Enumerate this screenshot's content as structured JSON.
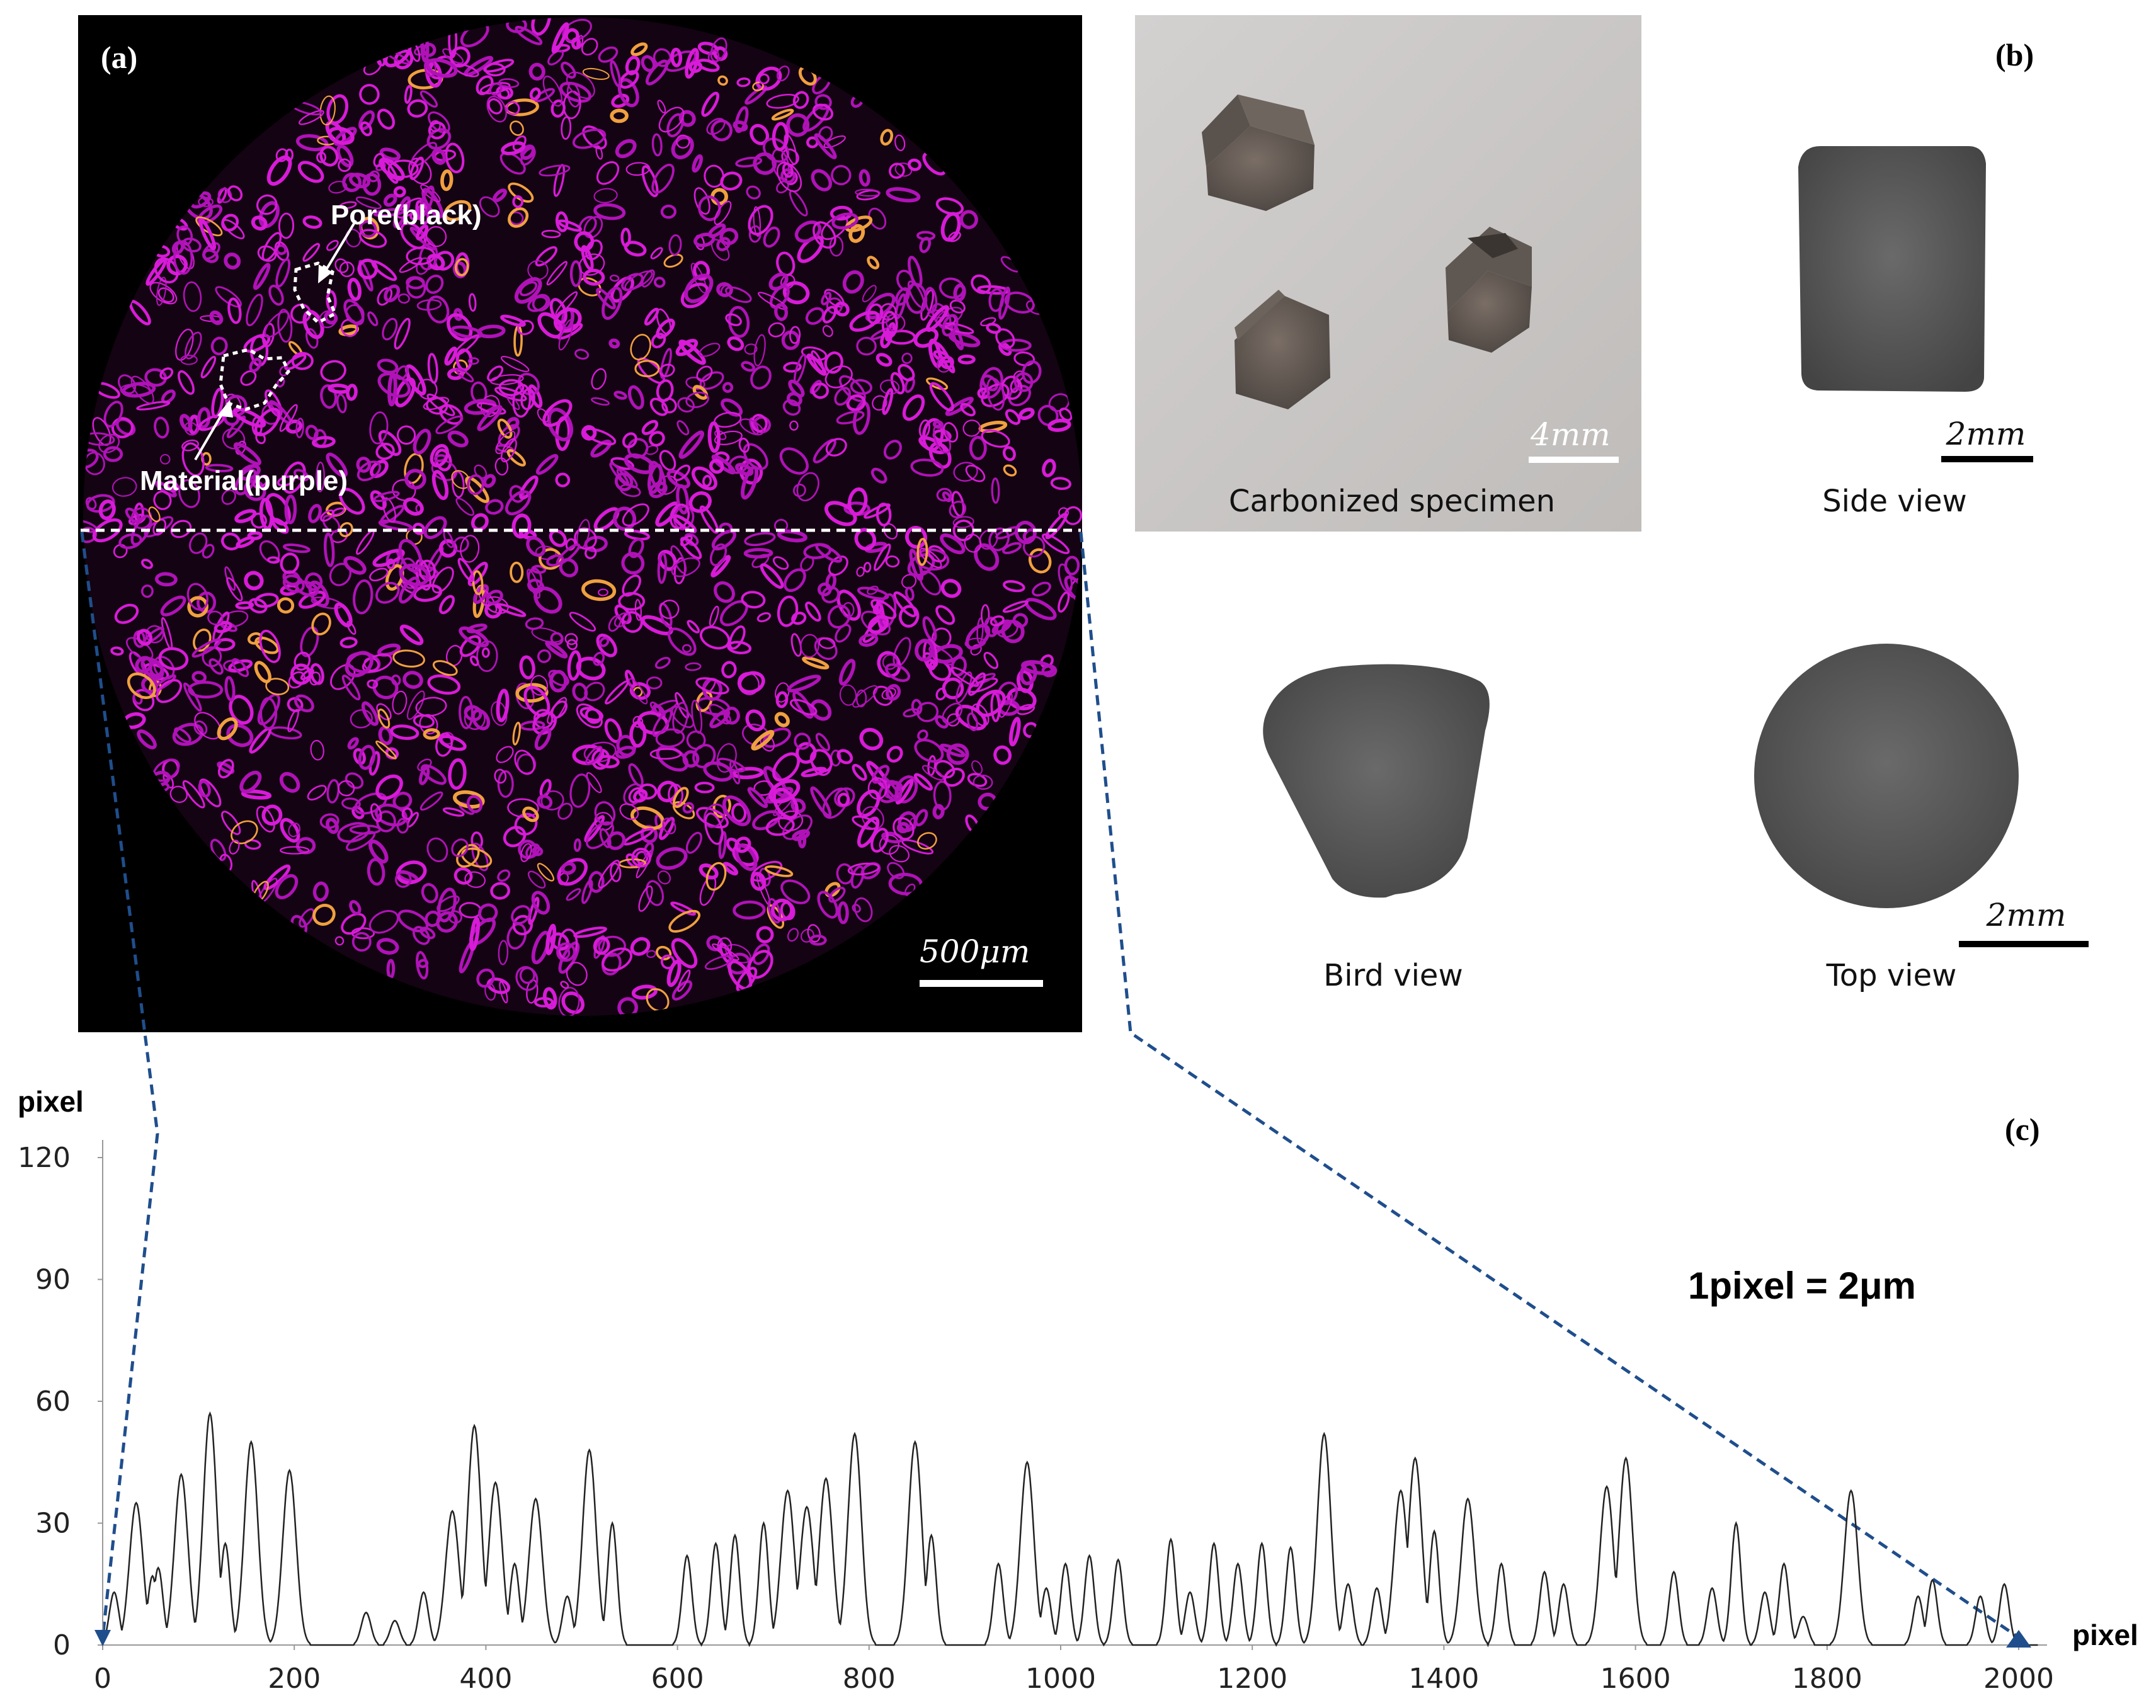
{
  "panel_a": {
    "letter": "(a)",
    "pore_label": "Pore(black)",
    "material_label": "Material(purple)",
    "scale_label": "500μm"
  },
  "panel_b": {
    "letter": "(b)",
    "photo_scale": "4mm",
    "photo_caption": "Carbonized specimen",
    "side_caption": "Side view",
    "side_scale": "2mm",
    "bird_caption": "Bird view",
    "top_caption": "Top view",
    "top_scale": "2mm"
  },
  "panel_c": {
    "letter": "(c)",
    "annotation": "1pixel = 2μm"
  },
  "colors": {
    "micrograph_background": "#000000",
    "material": "#d81bd8",
    "plot_line": "#222222",
    "guide_line": "#1f4e8c",
    "specimen_gray": "#555555"
  },
  "chart_data": {
    "type": "line",
    "ylabel": "pixel",
    "xlabel": "pixel",
    "xlim": [
      0,
      2030
    ],
    "ylim": [
      0,
      125
    ],
    "x_ticks": [
      0,
      200,
      400,
      600,
      800,
      1000,
      1200,
      1400,
      1600,
      1800,
      2000
    ],
    "y_ticks": [
      0,
      30,
      60,
      90,
      120
    ],
    "grid": false,
    "peaks": [
      [
        12,
        13
      ],
      [
        35,
        35
      ],
      [
        52,
        17
      ],
      [
        58,
        19
      ],
      [
        82,
        42
      ],
      [
        112,
        57
      ],
      [
        128,
        25
      ],
      [
        155,
        50
      ],
      [
        195,
        43
      ],
      [
        275,
        8
      ],
      [
        305,
        6
      ],
      [
        335,
        13
      ],
      [
        365,
        33
      ],
      [
        388,
        54
      ],
      [
        410,
        40
      ],
      [
        430,
        20
      ],
      [
        452,
        36
      ],
      [
        485,
        12
      ],
      [
        508,
        48
      ],
      [
        532,
        30
      ],
      [
        610,
        22
      ],
      [
        640,
        25
      ],
      [
        660,
        27
      ],
      [
        690,
        30
      ],
      [
        715,
        38
      ],
      [
        735,
        34
      ],
      [
        755,
        41
      ],
      [
        785,
        52
      ],
      [
        848,
        50
      ],
      [
        865,
        27
      ],
      [
        935,
        20
      ],
      [
        965,
        45
      ],
      [
        985,
        14
      ],
      [
        1005,
        20
      ],
      [
        1030,
        22
      ],
      [
        1060,
        21
      ],
      [
        1115,
        26
      ],
      [
        1135,
        13
      ],
      [
        1160,
        25
      ],
      [
        1185,
        20
      ],
      [
        1210,
        25
      ],
      [
        1240,
        24
      ],
      [
        1275,
        52
      ],
      [
        1300,
        15
      ],
      [
        1330,
        14
      ],
      [
        1355,
        38
      ],
      [
        1370,
        46
      ],
      [
        1390,
        28
      ],
      [
        1425,
        36
      ],
      [
        1460,
        20
      ],
      [
        1505,
        18
      ],
      [
        1525,
        15
      ],
      [
        1570,
        39
      ],
      [
        1590,
        46
      ],
      [
        1640,
        18
      ],
      [
        1680,
        14
      ],
      [
        1705,
        30
      ],
      [
        1735,
        13
      ],
      [
        1755,
        20
      ],
      [
        1775,
        7
      ],
      [
        1825,
        38
      ],
      [
        1895,
        12
      ],
      [
        1910,
        16
      ],
      [
        1960,
        12
      ],
      [
        1985,
        15
      ]
    ]
  }
}
